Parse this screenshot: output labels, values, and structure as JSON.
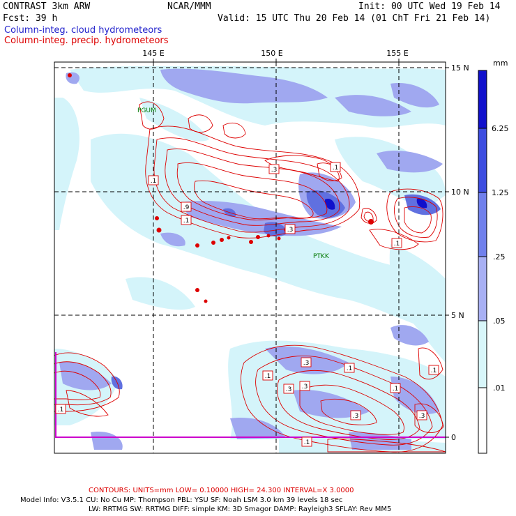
{
  "header": {
    "model": "CONTRAST  3km ARW",
    "center": "NCAR/MMM",
    "init": "Init: 00 UTC Wed 19 Feb 14",
    "fcst": "Fcst:   39 h",
    "valid": "Valid: 15 UTC Thu 20 Feb 14 (01 ChT Fri 21 Feb 14)"
  },
  "legend_lines": {
    "cloud": "Column-integ. cloud hydrometeors",
    "precip": "Column-integ. precip. hydrometeors"
  },
  "map": {
    "lon_labels": [
      "145 E",
      "150 E",
      "155 E"
    ],
    "lat_labels": [
      "15 N",
      "10 N",
      "5 N",
      "0"
    ],
    "stations": [
      "PGUM",
      "PTKK"
    ],
    "contour_labels": [
      ".1",
      ".3",
      ".1",
      ".9",
      ".1",
      ".3",
      ".1",
      ".3",
      ".1",
      ".3",
      ".1",
      ".3",
      ".1",
      ".1",
      ".3",
      ".3",
      ".1",
      ".1"
    ],
    "colors": {
      "precip_contour": "#dd0000",
      "cloud_light": "#d4f4fa",
      "cloud_mid": "#a0a8f0",
      "cloud_dark": "#6070e0",
      "boundary": "#cc00cc"
    }
  },
  "colorbar": {
    "unit": "mm",
    "labels": [
      "6.25",
      "1.25",
      ".25",
      ".05",
      ".01"
    ],
    "colors": [
      "#1010cc",
      "#3c4ce0",
      "#7080ec",
      "#a8b0f4",
      "#d8f6fa",
      "#ffffff"
    ]
  },
  "footer": {
    "contours": "CONTOURS:  UNITS=mm  LOW= 0.10000      HIGH= 24.300      INTERVAL=X  3.0000",
    "line1": "Model Info: V3.5.1     CU: No Cu     MP: Thompson     PBL: YSU       SF: Noah LSM      3.0 km   39 levels   18 sec",
    "line2": "LW: RRTMG    SW: RRTMG   DIFF: simple KM: 3D Smagor DAMP: Rayleigh3   SFLAY: Rev MM5"
  }
}
